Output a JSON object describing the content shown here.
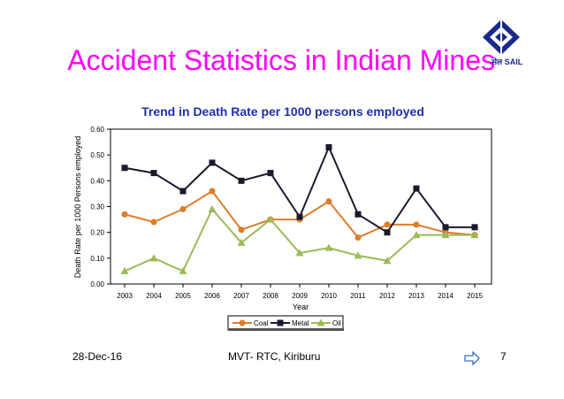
{
  "slide": {
    "title": "Accident Statistics in Indian Mines",
    "logo_text": "सेल SAIL",
    "logo_icon": "sail-logo-icon",
    "footer_date": "28-Dec-16",
    "footer_center": "MVT- RTC, Kiriburu",
    "page_number": "7",
    "next_icon": "arrow-right-icon"
  },
  "chart_data": {
    "type": "line",
    "title": "Trend in Death Rate per 1000 persons employed",
    "xlabel": "Year",
    "ylabel": "Death Rate per 1000 Persons employed",
    "ylim": [
      0,
      0.6
    ],
    "yticks": [
      "0.00",
      "0.10",
      "0.20",
      "0.30",
      "0.40",
      "0.50",
      "0.60"
    ],
    "categories": [
      "2003",
      "2004",
      "2005",
      "2006",
      "2007",
      "2008",
      "2009",
      "2010",
      "2011",
      "2012",
      "2013",
      "2014",
      "2015"
    ],
    "grid": false,
    "legend_position": "bottom",
    "series": [
      {
        "name": "Coal",
        "color": "#e07b28",
        "marker": "circle",
        "values": [
          0.27,
          0.24,
          0.29,
          0.36,
          0.21,
          0.25,
          0.25,
          0.32,
          0.18,
          0.23,
          0.23,
          0.2,
          0.19
        ]
      },
      {
        "name": "Metal",
        "color": "#1a1a2e",
        "marker": "square",
        "values": [
          0.45,
          0.43,
          0.36,
          0.47,
          0.4,
          0.43,
          0.26,
          0.53,
          0.27,
          0.2,
          0.37,
          0.22,
          0.22
        ]
      },
      {
        "name": "Oil",
        "color": "#9bbb59",
        "marker": "triangle",
        "values": [
          0.05,
          0.1,
          0.05,
          0.29,
          0.16,
          0.25,
          0.12,
          0.14,
          0.11,
          0.09,
          0.19,
          0.19,
          0.19
        ]
      }
    ]
  }
}
